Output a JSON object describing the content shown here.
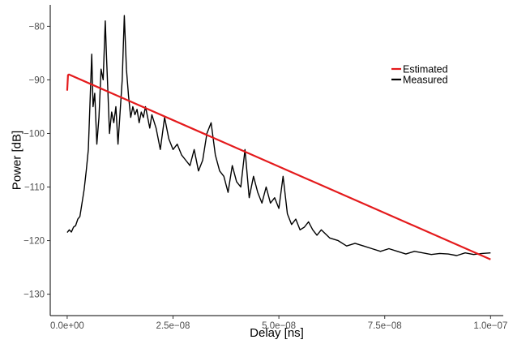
{
  "chart_data": {
    "type": "line",
    "title": "",
    "xlabel": "Delay [ns]",
    "ylabel": "Power [dB]",
    "xlim": [
      -4e-09,
      1.03e-07
    ],
    "ylim": [
      -134,
      -76
    ],
    "x_ticks": [
      0,
      2.5e-08,
      5e-08,
      7.5e-08,
      1e-07
    ],
    "x_tick_labels": [
      "0.0e+00",
      "2.5e−08",
      "5.0e−08",
      "7.5e−08",
      "1.0e−07"
    ],
    "y_ticks": [
      -130,
      -120,
      -110,
      -100,
      -90,
      -80
    ],
    "y_tick_labels": [
      "−130",
      "−120",
      "−110",
      "−100",
      "−90",
      "−80"
    ],
    "grid": false,
    "legend_position": "top-right",
    "series": [
      {
        "name": "Estimated",
        "color": "#e41a1c",
        "x": [
          0,
          2e-10,
          4e-10,
          1e-07
        ],
        "y": [
          -92,
          -89.1,
          -89.0,
          -123.5
        ]
      },
      {
        "name": "Measured",
        "color": "#000000",
        "x": [
          0,
          5e-10,
          1e-09,
          1.5e-09,
          2e-09,
          2.5e-09,
          3e-09,
          3.5e-09,
          4e-09,
          4.5e-09,
          5e-09,
          5.5e-09,
          5.8e-09,
          6.1e-09,
          6.5e-09,
          7e-09,
          7.5e-09,
          8e-09,
          8.5e-09,
          9e-09,
          9.3e-09,
          9.6e-09,
          1e-08,
          1.05e-08,
          1.1e-08,
          1.15e-08,
          1.2e-08,
          1.25e-08,
          1.3e-08,
          1.35e-08,
          1.4e-08,
          1.45e-08,
          1.5e-08,
          1.55e-08,
          1.6e-08,
          1.65e-08,
          1.7e-08,
          1.75e-08,
          1.8e-08,
          1.85e-08,
          1.9e-08,
          1.95e-08,
          2e-08,
          2.1e-08,
          2.2e-08,
          2.3e-08,
          2.4e-08,
          2.5e-08,
          2.6e-08,
          2.7e-08,
          2.8e-08,
          2.9e-08,
          3e-08,
          3.1e-08,
          3.2e-08,
          3.3e-08,
          3.4e-08,
          3.5e-08,
          3.6e-08,
          3.7e-08,
          3.8e-08,
          3.9e-08,
          4e-08,
          4.1e-08,
          4.2e-08,
          4.3e-08,
          4.4e-08,
          4.5e-08,
          4.6e-08,
          4.7e-08,
          4.8e-08,
          4.9e-08,
          5e-08,
          5.1e-08,
          5.2e-08,
          5.3e-08,
          5.4e-08,
          5.5e-08,
          5.6e-08,
          5.7e-08,
          5.8e-08,
          5.9e-08,
          6e-08,
          6.2e-08,
          6.4e-08,
          6.6e-08,
          6.8e-08,
          7e-08,
          7.2e-08,
          7.4e-08,
          7.6e-08,
          7.8e-08,
          8e-08,
          8.2e-08,
          8.4e-08,
          8.6e-08,
          8.8e-08,
          9e-08,
          9.2e-08,
          9.4e-08,
          9.6e-08,
          9.8e-08,
          1e-07
        ],
        "y": [
          -118.5,
          -118,
          -118.4,
          -117.5,
          -117.2,
          -116,
          -115.5,
          -113,
          -110.5,
          -107,
          -103,
          -92,
          -85.2,
          -95,
          -92.5,
          -102,
          -97,
          -88,
          -90,
          -79,
          -86,
          -92,
          -100,
          -96,
          -98,
          -95,
          -102,
          -96,
          -90,
          -78,
          -88,
          -93,
          -97,
          -95,
          -96.5,
          -95.5,
          -98,
          -96,
          -97,
          -95,
          -97,
          -99,
          -96.5,
          -99,
          -103,
          -97,
          -101,
          -103,
          -102,
          -104,
          -105,
          -106,
          -103,
          -107,
          -105,
          -100,
          -98,
          -104,
          -107,
          -108,
          -111,
          -106,
          -109,
          -110,
          -103,
          -112,
          -108,
          -111,
          -113,
          -110,
          -113,
          -112,
          -114,
          -108,
          -115,
          -117,
          -116,
          -118,
          -117.5,
          -116.5,
          -118,
          -119,
          -118,
          -119.5,
          -120,
          -121,
          -120.5,
          -121,
          -121.5,
          -122,
          -121.5,
          -122,
          -122.5,
          -122,
          -122.3,
          -122.6,
          -122.4,
          -122.5,
          -122.8,
          -122.3,
          -122.6,
          -122.4,
          -122.3
        ]
      }
    ]
  }
}
